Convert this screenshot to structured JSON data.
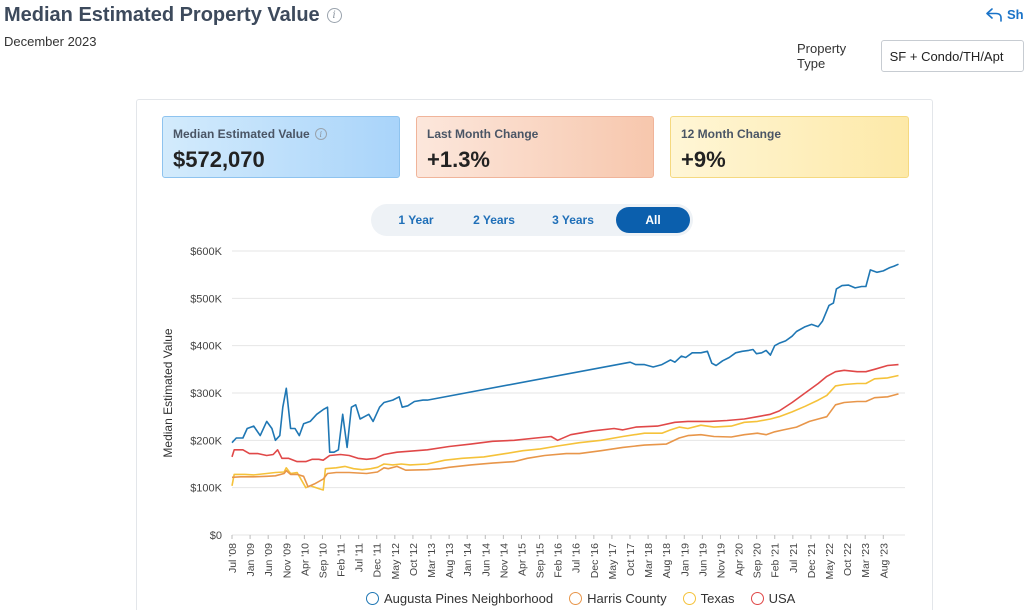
{
  "header": {
    "title": "Median Estimated Property Value",
    "date": "December 2023",
    "share_label": "Sh",
    "property_type_label": "Property Type",
    "property_type_value": "SF + Condo/TH/Apt"
  },
  "stats": [
    {
      "label": "Median Estimated Value",
      "value": "$572,070"
    },
    {
      "label": "Last Month Change",
      "value": "+1.3%"
    },
    {
      "label": "12 Month Change",
      "value": "+9%"
    }
  ],
  "periods": [
    {
      "label": "1 Year",
      "active": false
    },
    {
      "label": "2 Years",
      "active": false
    },
    {
      "label": "3 Years",
      "active": false
    },
    {
      "label": "All",
      "active": true
    }
  ],
  "colors": {
    "augusta": "#1f77b4",
    "harris": "#e8964a",
    "texas": "#f5c23a",
    "usa": "#e04848",
    "grid": "#e6e6e6",
    "axis_text": "#444444"
  },
  "chart_data": {
    "type": "line",
    "title": "",
    "xlabel": "",
    "ylabel": "Median Estimated Value",
    "ylim": [
      0,
      600000
    ],
    "y_ticks": [
      0,
      100000,
      200000,
      300000,
      400000,
      500000,
      600000
    ],
    "y_tick_labels": [
      "$0",
      "$100K",
      "$200K",
      "$300K",
      "$400K",
      "$500K",
      "$600K"
    ],
    "x_range": [
      2008.5,
      2024.0
    ],
    "x_tick_labels": [
      "Jul '08",
      "Jan '09",
      "Jun '09",
      "Nov '09",
      "Apr '10",
      "Sep '10",
      "Feb '11",
      "Jul '11",
      "Dec '11",
      "May '12",
      "Oct '12",
      "Mar '13",
      "Aug '13",
      "Jan '14",
      "Jun '14",
      "Nov '14",
      "Apr '15",
      "Sep '15",
      "Feb '16",
      "Jul '16",
      "Dec '16",
      "May '17",
      "Oct '17",
      "Mar '18",
      "Aug '18",
      "Jan '19",
      "Jun '19",
      "Nov '19",
      "Apr '20",
      "Sep '20",
      "Feb '21",
      "Jul '21",
      "Dec '21",
      "May '22",
      "Oct '22",
      "Mar '23",
      "Aug '23"
    ],
    "x_tick_values": [
      2008.5,
      2008.9167,
      2009.3333,
      2009.75,
      2010.1667,
      2010.5833,
      2011.0,
      2011.4167,
      2011.8333,
      2012.25,
      2012.6667,
      2013.0833,
      2013.5,
      2013.9167,
      2014.3333,
      2014.75,
      2015.1667,
      2015.5833,
      2016.0,
      2016.4167,
      2016.8333,
      2017.25,
      2017.6667,
      2018.0833,
      2018.5,
      2018.9167,
      2019.3333,
      2019.75,
      2020.1667,
      2020.5833,
      2021.0,
      2021.4167,
      2021.8333,
      2022.25,
      2022.6667,
      2023.0833,
      2023.5
    ],
    "legend_position": "bottom",
    "series": [
      {
        "name": "Augusta Pines Neighborhood",
        "color_key": "augusta",
        "points": [
          [
            2008.5,
            195000
          ],
          [
            2008.6,
            205000
          ],
          [
            2008.75,
            205000
          ],
          [
            2008.85,
            225000
          ],
          [
            2009.0,
            230000
          ],
          [
            2009.15,
            210000
          ],
          [
            2009.3,
            240000
          ],
          [
            2009.42,
            225000
          ],
          [
            2009.5,
            200000
          ],
          [
            2009.6,
            210000
          ],
          [
            2009.67,
            270000
          ],
          [
            2009.75,
            310000
          ],
          [
            2009.85,
            225000
          ],
          [
            2009.95,
            225000
          ],
          [
            2010.05,
            210000
          ],
          [
            2010.15,
            235000
          ],
          [
            2010.3,
            240000
          ],
          [
            2010.45,
            255000
          ],
          [
            2010.6,
            265000
          ],
          [
            2010.7,
            270000
          ],
          [
            2010.75,
            175000
          ],
          [
            2010.85,
            175000
          ],
          [
            2010.95,
            180000
          ],
          [
            2011.05,
            255000
          ],
          [
            2011.15,
            185000
          ],
          [
            2011.25,
            270000
          ],
          [
            2011.35,
            275000
          ],
          [
            2011.45,
            245000
          ],
          [
            2011.55,
            250000
          ],
          [
            2011.65,
            255000
          ],
          [
            2011.75,
            240000
          ],
          [
            2011.9,
            270000
          ],
          [
            2012.0,
            280000
          ],
          [
            2012.2,
            285000
          ],
          [
            2012.35,
            292000
          ],
          [
            2012.42,
            270000
          ],
          [
            2012.55,
            273000
          ],
          [
            2012.7,
            282000
          ],
          [
            2012.9,
            285000
          ],
          [
            2013.0,
            285000
          ],
          [
            2017.67,
            365000
          ],
          [
            2017.8,
            360000
          ],
          [
            2018.0,
            360000
          ],
          [
            2018.2,
            355000
          ],
          [
            2018.4,
            360000
          ],
          [
            2018.6,
            370000
          ],
          [
            2018.7,
            365000
          ],
          [
            2018.85,
            378000
          ],
          [
            2018.95,
            375000
          ],
          [
            2019.1,
            385000
          ],
          [
            2019.3,
            385000
          ],
          [
            2019.45,
            388000
          ],
          [
            2019.55,
            363000
          ],
          [
            2019.65,
            358000
          ],
          [
            2019.8,
            368000
          ],
          [
            2019.95,
            375000
          ],
          [
            2020.1,
            385000
          ],
          [
            2020.25,
            388000
          ],
          [
            2020.4,
            390000
          ],
          [
            2020.5,
            392000
          ],
          [
            2020.58,
            383000
          ],
          [
            2020.7,
            385000
          ],
          [
            2020.8,
            390000
          ],
          [
            2020.9,
            380000
          ],
          [
            2021.0,
            400000
          ],
          [
            2021.1,
            405000
          ],
          [
            2021.25,
            410000
          ],
          [
            2021.4,
            420000
          ],
          [
            2021.5,
            430000
          ],
          [
            2021.7,
            440000
          ],
          [
            2021.85,
            445000
          ],
          [
            2022.0,
            440000
          ],
          [
            2022.1,
            452000
          ],
          [
            2022.25,
            485000
          ],
          [
            2022.35,
            490000
          ],
          [
            2022.42,
            520000
          ],
          [
            2022.55,
            527000
          ],
          [
            2022.7,
            528000
          ],
          [
            2022.85,
            522000
          ],
          [
            2023.0,
            525000
          ],
          [
            2023.1,
            525000
          ],
          [
            2023.2,
            560000
          ],
          [
            2023.35,
            555000
          ],
          [
            2023.5,
            558000
          ],
          [
            2023.65,
            565000
          ],
          [
            2023.75,
            568000
          ],
          [
            2023.85,
            572070
          ]
        ]
      },
      {
        "name": "Harris County",
        "color_key": "harris",
        "points": [
          [
            2008.5,
            122000
          ],
          [
            2008.7,
            123000
          ],
          [
            2009.0,
            123000
          ],
          [
            2009.3,
            124000
          ],
          [
            2009.5,
            125000
          ],
          [
            2009.7,
            130000
          ],
          [
            2009.75,
            136000
          ],
          [
            2009.85,
            128000
          ],
          [
            2010.0,
            128000
          ],
          [
            2010.15,
            124000
          ],
          [
            2010.25,
            102000
          ],
          [
            2010.4,
            108000
          ],
          [
            2010.6,
            118000
          ],
          [
            2010.7,
            130000
          ],
          [
            2010.9,
            132000
          ],
          [
            2011.2,
            132000
          ],
          [
            2011.4,
            131000
          ],
          [
            2011.6,
            130000
          ],
          [
            2011.85,
            133000
          ],
          [
            2012.0,
            142000
          ],
          [
            2012.1,
            140000
          ],
          [
            2012.3,
            145000
          ],
          [
            2012.5,
            137000
          ],
          [
            2013.0,
            138000
          ],
          [
            2013.3,
            140000
          ],
          [
            2013.5,
            143000
          ],
          [
            2014.0,
            148000
          ],
          [
            2014.5,
            152000
          ],
          [
            2015.0,
            155000
          ],
          [
            2015.3,
            162000
          ],
          [
            2015.7,
            168000
          ],
          [
            2016.2,
            172000
          ],
          [
            2016.5,
            172000
          ],
          [
            2017.0,
            178000
          ],
          [
            2017.5,
            185000
          ],
          [
            2018.0,
            190000
          ],
          [
            2018.5,
            192000
          ],
          [
            2018.8,
            205000
          ],
          [
            2019.0,
            210000
          ],
          [
            2019.3,
            212000
          ],
          [
            2019.6,
            208000
          ],
          [
            2020.0,
            207000
          ],
          [
            2020.3,
            212000
          ],
          [
            2020.6,
            215000
          ],
          [
            2020.8,
            212000
          ],
          [
            2021.0,
            218000
          ],
          [
            2021.2,
            222000
          ],
          [
            2021.5,
            228000
          ],
          [
            2021.8,
            240000
          ],
          [
            2022.0,
            245000
          ],
          [
            2022.2,
            250000
          ],
          [
            2022.4,
            275000
          ],
          [
            2022.6,
            280000
          ],
          [
            2022.9,
            282000
          ],
          [
            2023.1,
            282000
          ],
          [
            2023.3,
            290000
          ],
          [
            2023.6,
            292000
          ],
          [
            2023.85,
            298000
          ]
        ]
      },
      {
        "name": "Texas",
        "color_key": "texas",
        "points": [
          [
            2008.5,
            104000
          ],
          [
            2008.55,
            128000
          ],
          [
            2008.8,
            128000
          ],
          [
            2009.0,
            127000
          ],
          [
            2009.3,
            130000
          ],
          [
            2009.5,
            132000
          ],
          [
            2009.7,
            133000
          ],
          [
            2009.75,
            142000
          ],
          [
            2009.85,
            130000
          ],
          [
            2010.0,
            132000
          ],
          [
            2010.2,
            100000
          ],
          [
            2010.3,
            104000
          ],
          [
            2010.5,
            98000
          ],
          [
            2010.6,
            95000
          ],
          [
            2010.65,
            140000
          ],
          [
            2010.9,
            142000
          ],
          [
            2011.1,
            145000
          ],
          [
            2011.3,
            140000
          ],
          [
            2011.5,
            138000
          ],
          [
            2011.7,
            140000
          ],
          [
            2011.85,
            143000
          ],
          [
            2012.0,
            150000
          ],
          [
            2012.2,
            148000
          ],
          [
            2012.4,
            150000
          ],
          [
            2012.6,
            148000
          ],
          [
            2013.0,
            150000
          ],
          [
            2013.4,
            158000
          ],
          [
            2013.8,
            162000
          ],
          [
            2014.3,
            165000
          ],
          [
            2014.8,
            172000
          ],
          [
            2015.2,
            178000
          ],
          [
            2015.6,
            182000
          ],
          [
            2016.0,
            188000
          ],
          [
            2016.5,
            195000
          ],
          [
            2017.0,
            200000
          ],
          [
            2017.5,
            208000
          ],
          [
            2018.0,
            215000
          ],
          [
            2018.4,
            215000
          ],
          [
            2018.6,
            222000
          ],
          [
            2018.8,
            228000
          ],
          [
            2019.0,
            225000
          ],
          [
            2019.3,
            232000
          ],
          [
            2019.6,
            228000
          ],
          [
            2020.0,
            230000
          ],
          [
            2020.3,
            238000
          ],
          [
            2020.6,
            240000
          ],
          [
            2020.9,
            245000
          ],
          [
            2021.1,
            250000
          ],
          [
            2021.4,
            260000
          ],
          [
            2021.7,
            272000
          ],
          [
            2022.0,
            285000
          ],
          [
            2022.2,
            295000
          ],
          [
            2022.4,
            315000
          ],
          [
            2022.6,
            318000
          ],
          [
            2022.9,
            320000
          ],
          [
            2023.1,
            320000
          ],
          [
            2023.3,
            330000
          ],
          [
            2023.6,
            332000
          ],
          [
            2023.85,
            337000
          ]
        ]
      },
      {
        "name": "USA",
        "color_key": "usa",
        "points": [
          [
            2008.5,
            165000
          ],
          [
            2008.55,
            180000
          ],
          [
            2008.75,
            180000
          ],
          [
            2008.9,
            172000
          ],
          [
            2009.1,
            172000
          ],
          [
            2009.3,
            168000
          ],
          [
            2009.45,
            170000
          ],
          [
            2009.55,
            180000
          ],
          [
            2009.65,
            162000
          ],
          [
            2009.8,
            162000
          ],
          [
            2010.0,
            155000
          ],
          [
            2010.2,
            155000
          ],
          [
            2010.35,
            160000
          ],
          [
            2010.5,
            160000
          ],
          [
            2010.6,
            158000
          ],
          [
            2010.75,
            168000
          ],
          [
            2011.0,
            170000
          ],
          [
            2011.2,
            168000
          ],
          [
            2011.4,
            162000
          ],
          [
            2011.6,
            160000
          ],
          [
            2011.8,
            162000
          ],
          [
            2012.0,
            170000
          ],
          [
            2012.3,
            175000
          ],
          [
            2012.6,
            177000
          ],
          [
            2013.0,
            180000
          ],
          [
            2013.5,
            187000
          ],
          [
            2014.0,
            192000
          ],
          [
            2014.5,
            198000
          ],
          [
            2015.0,
            200000
          ],
          [
            2015.5,
            205000
          ],
          [
            2015.85,
            208000
          ],
          [
            2016.0,
            200000
          ],
          [
            2016.3,
            212000
          ],
          [
            2016.8,
            220000
          ],
          [
            2017.3,
            225000
          ],
          [
            2017.5,
            222000
          ],
          [
            2017.8,
            228000
          ],
          [
            2018.3,
            230000
          ],
          [
            2018.7,
            238000
          ],
          [
            2019.0,
            240000
          ],
          [
            2019.5,
            240000
          ],
          [
            2019.9,
            242000
          ],
          [
            2020.3,
            245000
          ],
          [
            2020.6,
            250000
          ],
          [
            2020.9,
            255000
          ],
          [
            2021.1,
            262000
          ],
          [
            2021.4,
            280000
          ],
          [
            2021.7,
            300000
          ],
          [
            2022.0,
            320000
          ],
          [
            2022.2,
            335000
          ],
          [
            2022.4,
            345000
          ],
          [
            2022.6,
            348000
          ],
          [
            2022.9,
            345000
          ],
          [
            2023.1,
            345000
          ],
          [
            2023.3,
            350000
          ],
          [
            2023.6,
            358000
          ],
          [
            2023.85,
            360000
          ]
        ]
      }
    ]
  }
}
